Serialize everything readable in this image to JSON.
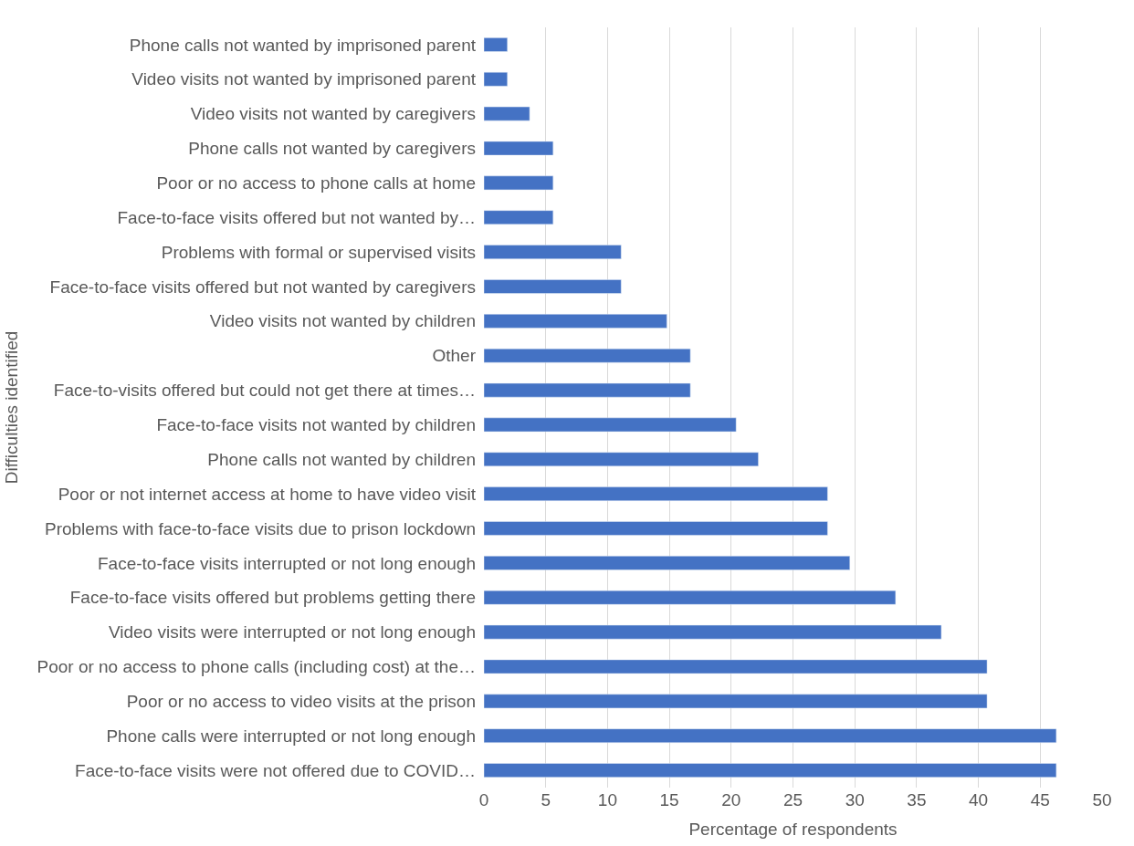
{
  "chart_data": {
    "type": "bar",
    "orientation": "horizontal",
    "xlabel": "Percentage of respondents",
    "ylabel": "Difficulties identified",
    "categories": [
      "Phone calls not wanted by imprisoned parent",
      "Video visits not wanted by imprisoned parent",
      "Video visits not wanted by caregivers",
      "Phone calls not wanted by caregivers",
      "Poor or no access to phone calls at home",
      "Face-to-face visits offered but not wanted by…",
      "Problems with formal or supervised visits",
      "Face-to-face visits offered but not wanted by caregivers",
      "Video visits not wanted by children",
      "Other",
      "Face-to-visits offered but could not get there at times…",
      "Face-to-face visits not wanted by children",
      "Phone calls not wanted by children",
      "Poor or not internet access at home to have video visit",
      "Problems with face-to-face visits due to prison lockdown",
      "Face-to-face visits interrupted or not long enough",
      "Face-to-face visits offered but problems getting there",
      "Video visits were interrupted or not long enough",
      "Poor or no access to phone calls (including cost) at the…",
      "Poor or no access to video visits at the prison",
      "Phone calls were interrupted or not long enough",
      "Face-to-face visits were not offered due to COVID…"
    ],
    "values": [
      1.9,
      1.9,
      3.7,
      5.6,
      5.6,
      5.6,
      11.1,
      11.1,
      14.8,
      16.7,
      16.7,
      20.4,
      22.2,
      27.8,
      27.8,
      29.6,
      33.3,
      37.0,
      40.7,
      40.7,
      46.3,
      46.3
    ],
    "color": "#4472c4",
    "xlim": [
      0,
      50
    ],
    "xticks": [
      0,
      5,
      10,
      15,
      20,
      25,
      30,
      35,
      40,
      45,
      50
    ],
    "grid": "x"
  }
}
